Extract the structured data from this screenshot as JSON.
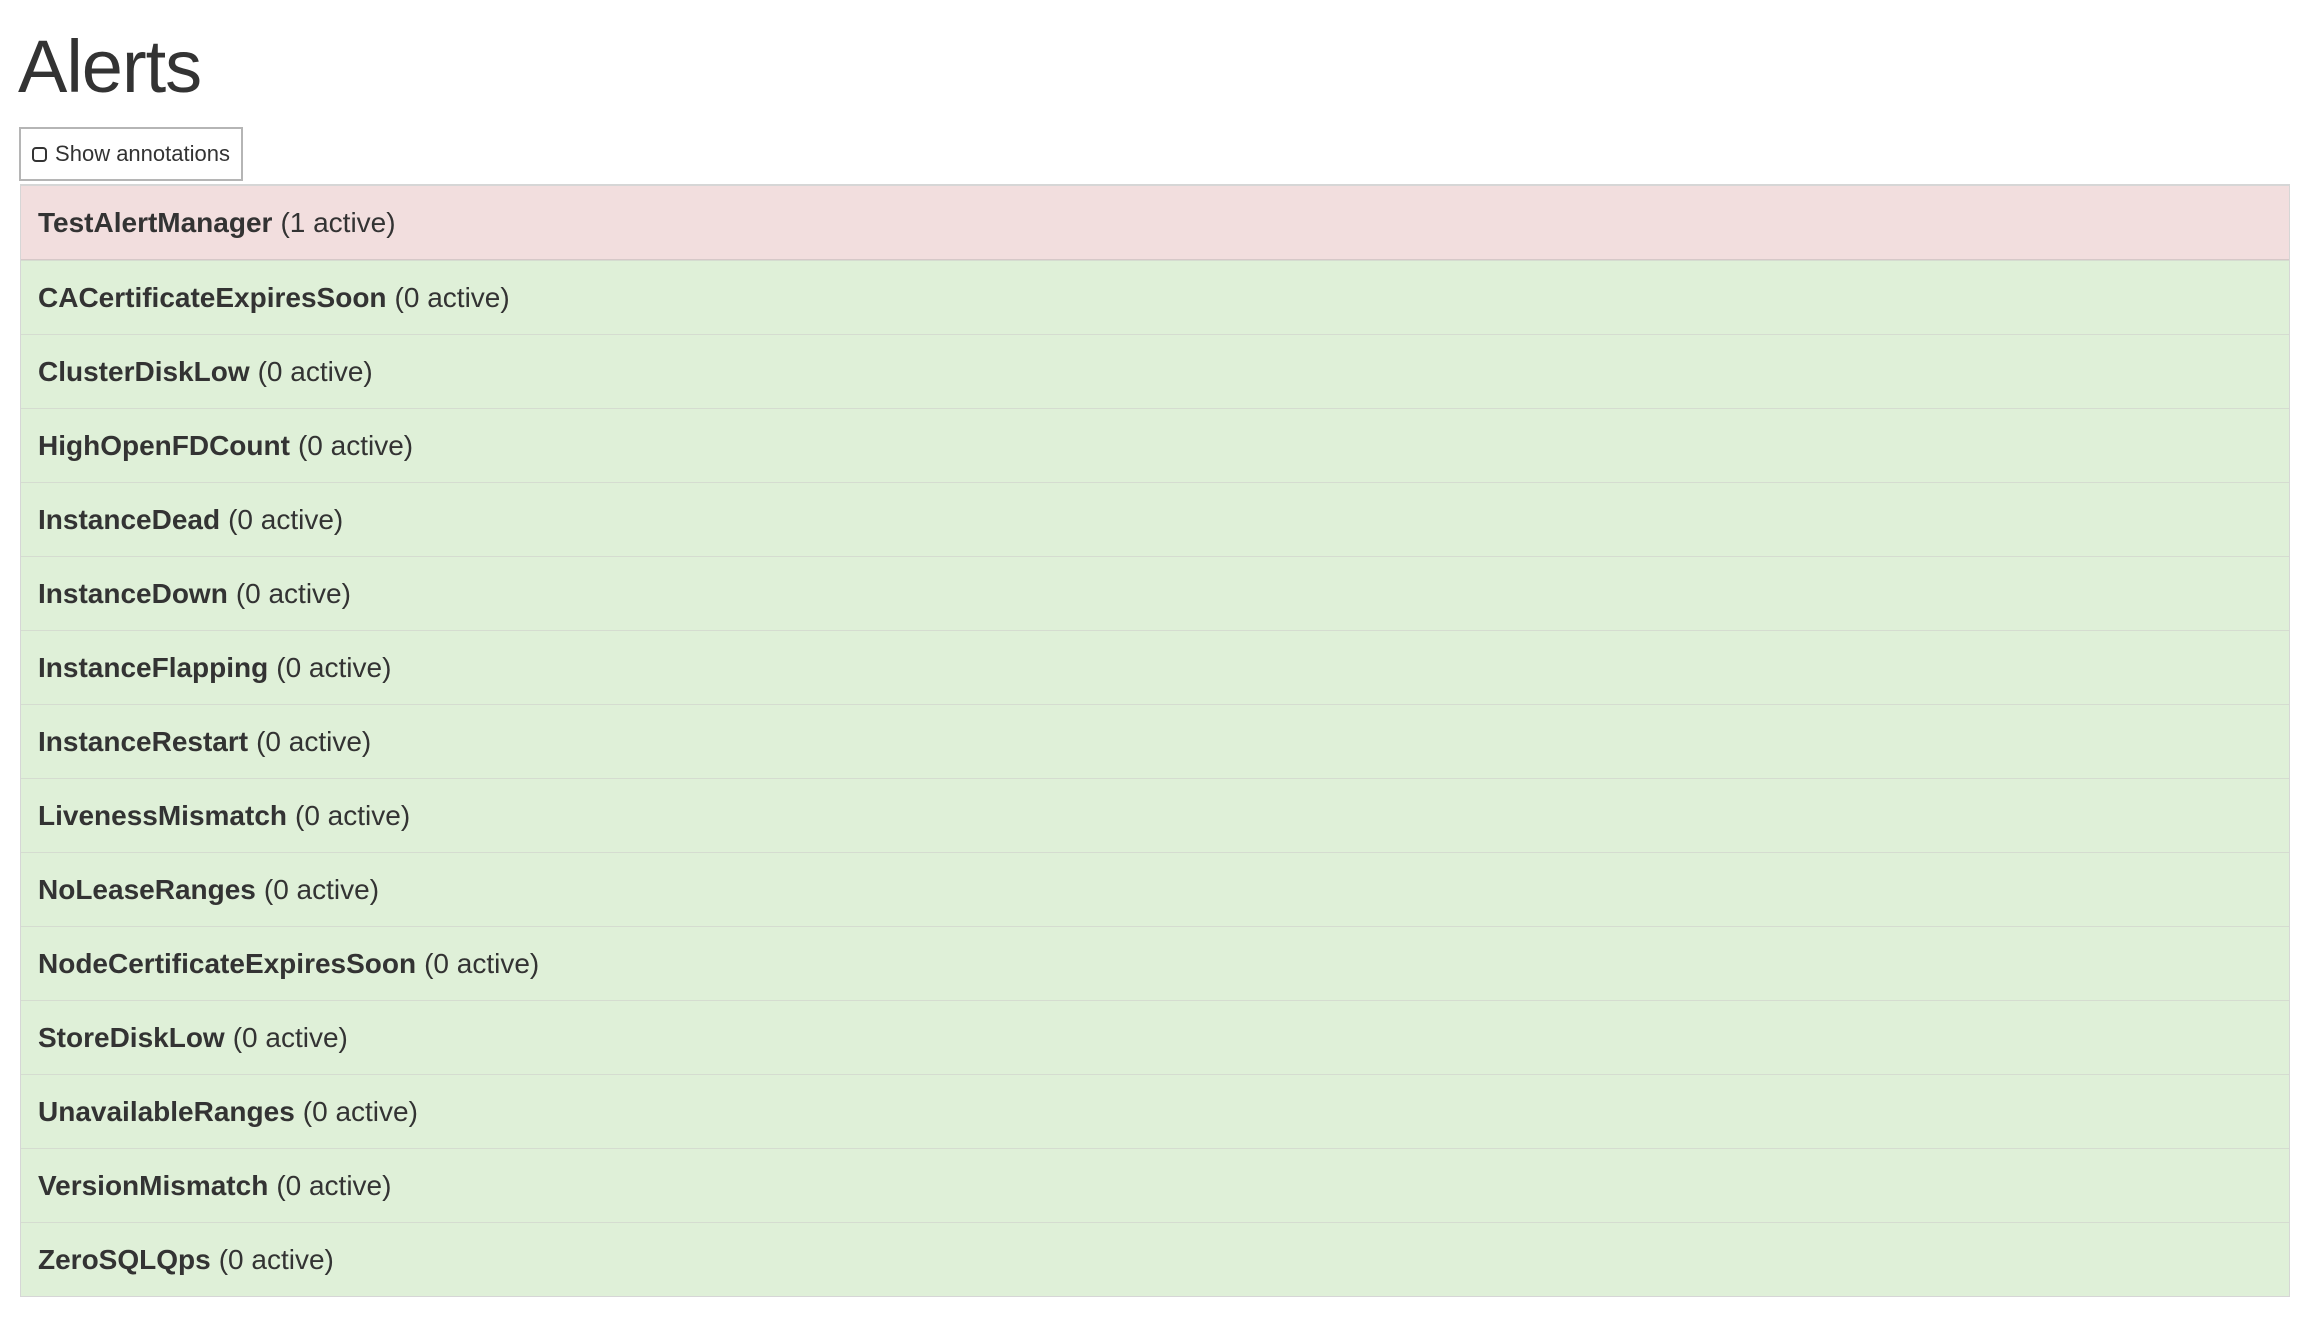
{
  "page": {
    "title": "Alerts"
  },
  "toolbar": {
    "show_annotations_label": "Show annotations",
    "show_annotations_checked": false
  },
  "colors": {
    "firing": "#f2dede",
    "inactive": "#dff0d8",
    "text": "#333333"
  },
  "alerts": [
    {
      "name": "TestAlertManager",
      "count": "(1 active)",
      "state": "firing"
    },
    {
      "name": "CACertificateExpiresSoon",
      "count": "(0 active)",
      "state": "inactive"
    },
    {
      "name": "ClusterDiskLow",
      "count": "(0 active)",
      "state": "inactive"
    },
    {
      "name": "HighOpenFDCount",
      "count": "(0 active)",
      "state": "inactive"
    },
    {
      "name": "InstanceDead",
      "count": "(0 active)",
      "state": "inactive"
    },
    {
      "name": "InstanceDown",
      "count": "(0 active)",
      "state": "inactive"
    },
    {
      "name": "InstanceFlapping",
      "count": "(0 active)",
      "state": "inactive"
    },
    {
      "name": "InstanceRestart",
      "count": "(0 active)",
      "state": "inactive"
    },
    {
      "name": "LivenessMismatch",
      "count": "(0 active)",
      "state": "inactive"
    },
    {
      "name": "NoLeaseRanges",
      "count": "(0 active)",
      "state": "inactive"
    },
    {
      "name": "NodeCertificateExpiresSoon",
      "count": "(0 active)",
      "state": "inactive"
    },
    {
      "name": "StoreDiskLow",
      "count": "(0 active)",
      "state": "inactive"
    },
    {
      "name": "UnavailableRanges",
      "count": "(0 active)",
      "state": "inactive"
    },
    {
      "name": "VersionMismatch",
      "count": "(0 active)",
      "state": "inactive"
    },
    {
      "name": "ZeroSQLQps",
      "count": "(0 active)",
      "state": "inactive"
    }
  ]
}
